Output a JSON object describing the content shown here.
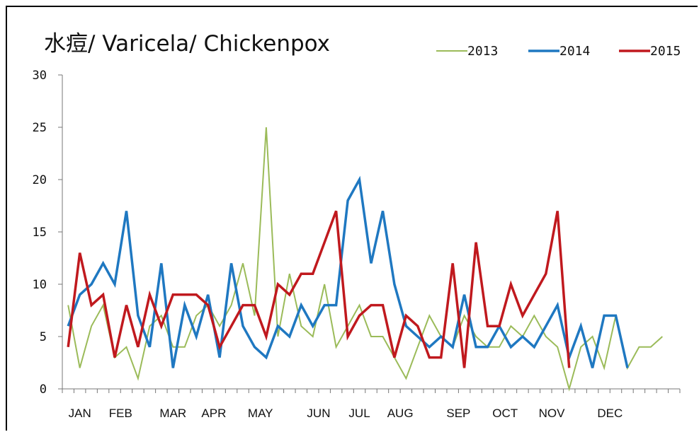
{
  "chart_data": {
    "type": "line",
    "title": "水痘/ Varicela/ Chickenpox",
    "xlabel": "",
    "ylabel": "",
    "ylim": [
      0,
      30
    ],
    "y_ticks": [
      0,
      5,
      10,
      15,
      20,
      25,
      30
    ],
    "x_ticks_weeks": 53,
    "month_labels": [
      "JAN",
      "FEB",
      "MAR",
      "APR",
      "MAY",
      "JUN",
      "JUL",
      "AUG",
      "SEP",
      "OCT",
      "NOV",
      "DEC"
    ],
    "month_label_weeks": [
      1.5,
      5,
      9.5,
      13,
      17,
      22,
      25.5,
      29,
      34,
      38,
      42,
      47
    ],
    "grid": false,
    "legend_position": "top-right",
    "series": [
      {
        "name": "2013",
        "color": "#9bbb59",
        "width": 2,
        "values": [
          8,
          2,
          6,
          8,
          3,
          4,
          1,
          6,
          7,
          4,
          4,
          7,
          8,
          6,
          8,
          12,
          7,
          25,
          5,
          11,
          6,
          5,
          10,
          4,
          6,
          8,
          5,
          5,
          3,
          1,
          4,
          7,
          5,
          4,
          7,
          5,
          4,
          4,
          6,
          5,
          7,
          5,
          4,
          0,
          4,
          5,
          2,
          7,
          2,
          4,
          4,
          5
        ]
      },
      {
        "name": "2014",
        "color": "#1f78c1",
        "width": 3.5,
        "values": [
          6,
          9,
          10,
          12,
          10,
          17,
          7,
          4,
          12,
          2,
          8,
          5,
          9,
          3,
          12,
          6,
          4,
          3,
          6,
          5,
          8,
          6,
          8,
          8,
          18,
          20,
          12,
          17,
          10,
          6,
          5,
          4,
          5,
          4,
          9,
          4,
          4,
          6,
          4,
          5,
          4,
          6,
          8,
          3,
          6,
          2,
          7,
          7,
          2
        ]
      },
      {
        "name": "2015",
        "color": "#c0191e",
        "width": 3.5,
        "values": [
          4,
          13,
          8,
          9,
          3,
          8,
          4,
          9,
          6,
          9,
          9,
          9,
          8,
          4,
          6,
          8,
          8,
          5,
          10,
          9,
          11,
          11,
          14,
          17,
          5,
          7,
          8,
          8,
          3,
          7,
          6,
          3,
          3,
          12,
          2,
          14,
          6,
          6,
          10,
          7,
          9,
          11,
          17,
          2
        ]
      }
    ]
  }
}
